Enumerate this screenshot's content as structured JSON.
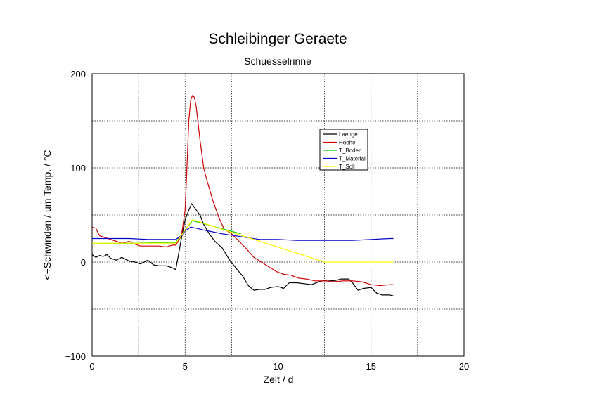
{
  "chart_data": {
    "type": "line",
    "title": "Schleibinger Geraete",
    "subtitle": "Schuesselrinne",
    "xlabel": "Zeit / d",
    "ylabel": "<−Schwinden / um  Temp. / °C",
    "xlim": [
      0,
      20
    ],
    "ylim": [
      -100,
      200
    ],
    "xticks": [
      0,
      5,
      10,
      15,
      20
    ],
    "yticks": [
      -100,
      0,
      100,
      200
    ],
    "grid": true,
    "legend_position": "upper-right",
    "series": [
      {
        "name": "Laenge",
        "color": "#000000",
        "x": [
          0,
          0.2,
          0.4,
          0.6,
          0.8,
          1.0,
          1.3,
          1.6,
          2.0,
          2.3,
          2.6,
          3.0,
          3.3,
          3.6,
          4.0,
          4.3,
          4.5,
          4.8,
          5.0,
          5.2,
          5.35,
          5.5,
          5.8,
          6.0,
          6.3,
          6.6,
          7.0,
          7.4,
          7.8,
          8.1,
          8.4,
          8.7,
          9.0,
          9.3,
          9.6,
          10.0,
          10.3,
          10.6,
          11.0,
          11.4,
          11.8,
          12.2,
          12.6,
          13.0,
          13.4,
          13.8,
          14.0,
          14.3,
          14.6,
          15.0,
          15.3,
          15.6,
          16.0,
          16.2
        ],
        "y": [
          8,
          5,
          7,
          6,
          8,
          4,
          2,
          5,
          1,
          0,
          -2,
          2,
          -3,
          -4,
          -4,
          -6,
          -8,
          25,
          45,
          55,
          62,
          58,
          50,
          40,
          30,
          22,
          15,
          2,
          -8,
          -15,
          -25,
          -30,
          -29,
          -29,
          -27,
          -26,
          -28,
          -22,
          -22,
          -23,
          -24,
          -21,
          -19,
          -20,
          -18,
          -18,
          -22,
          -30,
          -28,
          -27,
          -33,
          -35,
          -35,
          -36
        ]
      },
      {
        "name": "Hoehe",
        "color": "#d00000",
        "x": [
          0,
          0.2,
          0.4,
          0.7,
          1.0,
          1.3,
          1.6,
          2.0,
          2.3,
          2.6,
          3.0,
          3.3,
          3.6,
          4.0,
          4.3,
          4.5,
          4.8,
          5.0,
          5.1,
          5.2,
          5.3,
          5.4,
          5.5,
          5.6,
          5.8,
          6.0,
          6.2,
          6.5,
          6.8,
          7.1,
          7.5,
          7.9,
          8.3,
          8.7,
          9.1,
          9.5,
          9.9,
          10.3,
          10.7,
          11.1,
          11.5,
          12.0,
          12.5,
          13.0,
          13.5,
          14.0,
          14.5,
          15.0,
          15.5,
          16.0,
          16.2
        ],
        "y": [
          37,
          36,
          28,
          26,
          24,
          22,
          20,
          22,
          19,
          17,
          17,
          17,
          17,
          16,
          18,
          18,
          28,
          55,
          100,
          150,
          172,
          177,
          175,
          165,
          130,
          100,
          85,
          65,
          48,
          35,
          30,
          22,
          14,
          5,
          0,
          -5,
          -10,
          -13,
          -14,
          -17,
          -18,
          -20,
          -20,
          -21,
          -20,
          -20,
          -21,
          -24,
          -25,
          -24,
          -24
        ]
      },
      {
        "name": "T_Boden",
        "color": "#00cc00",
        "x": [
          0,
          4.5,
          5.4,
          8.0
        ],
        "y": [
          19,
          21,
          44,
          30
        ]
      },
      {
        "name": "T_Material",
        "color": "#0000cc",
        "x": [
          0,
          1.0,
          2.0,
          3.0,
          4.0,
          4.5,
          4.8,
          5.0,
          5.3,
          5.6,
          6.0,
          7.0,
          8.0,
          9.0,
          10.0,
          11.0,
          12.0,
          13.0,
          14.0,
          15.0,
          16.0,
          16.2
        ],
        "y": [
          25,
          25,
          25,
          24,
          24,
          24,
          28,
          33,
          37,
          36,
          34,
          30,
          27,
          24,
          24,
          23,
          23,
          23,
          23,
          24,
          25,
          25
        ]
      },
      {
        "name": "T_Soll",
        "color": "#ffff00",
        "x": [
          0,
          4.5,
          5.4,
          12.5,
          16.2
        ],
        "y": [
          20,
          20,
          45,
          0,
          0
        ]
      }
    ]
  }
}
